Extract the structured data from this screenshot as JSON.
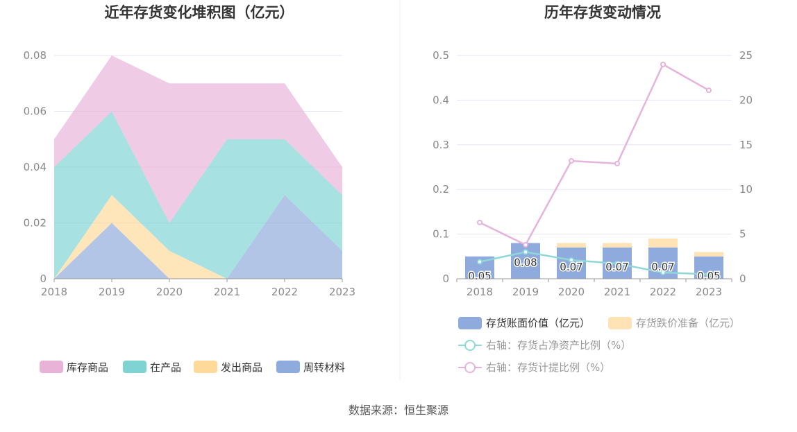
{
  "source": "数据来源：恒生聚源",
  "chart_data": [
    {
      "type": "area",
      "stacked": true,
      "title": "近年存货变化堆积图（亿元）",
      "categories": [
        "2018",
        "2019",
        "2020",
        "2021",
        "2022",
        "2023"
      ],
      "ylim": [
        0,
        0.08
      ],
      "yticks": [
        "0",
        "0.02",
        "0.04",
        "0.06",
        "0.08"
      ],
      "grid": true,
      "legend_position": "bottom",
      "series": [
        {
          "name": "周转材料",
          "color": "#8faadc",
          "values": [
            0,
            0.02,
            0,
            0,
            0.03,
            0.01
          ]
        },
        {
          "name": "发出商品",
          "color": "#ffd99a",
          "values": [
            0,
            0.01,
            0.01,
            0,
            0,
            0
          ]
        },
        {
          "name": "在产品",
          "color": "#7fd3d3",
          "values": [
            0.04,
            0.03,
            0.01,
            0.05,
            0.02,
            0.02
          ]
        },
        {
          "name": "库存商品",
          "color": "#e9b3d8",
          "values": [
            0.01,
            0.02,
            0.05,
            0.02,
            0.02,
            0.01
          ]
        }
      ],
      "legend_order": [
        "库存商品",
        "在产品",
        "发出商品",
        "周转材料"
      ]
    },
    {
      "type": "bar",
      "stacked": true,
      "title": "历年存货变动情况",
      "categories": [
        "2018",
        "2019",
        "2020",
        "2021",
        "2022",
        "2023"
      ],
      "ylim": [
        0,
        0.5
      ],
      "yticks": [
        "0",
        "0.1",
        "0.2",
        "0.3",
        "0.4",
        "0.5"
      ],
      "y2lim": [
        0,
        25
      ],
      "y2ticks": [
        "0",
        "5",
        "10",
        "15",
        "20",
        "25"
      ],
      "grid": true,
      "legend_position": "bottom",
      "bars": [
        {
          "name": "存货账面价值（亿元）",
          "color": "#8faadc",
          "values": [
            0.05,
            0.08,
            0.07,
            0.07,
            0.07,
            0.05
          ],
          "labels": [
            "0.05",
            "0.08",
            "0.07",
            "0.07",
            "0.07",
            "0.05"
          ]
        },
        {
          "name": "存货跌价准备（亿元）",
          "color": "#ffe3b5",
          "values": [
            0,
            0,
            0.01,
            0.01,
            0.02,
            0.01
          ]
        }
      ],
      "lines": [
        {
          "name": "右轴：存货占净资产比例（%）",
          "color": "#8fd8d8",
          "axis": "right",
          "values": [
            1.9,
            3.0,
            2.1,
            1.7,
            0.7,
            0.5
          ]
        },
        {
          "name": "右轴：存货计提比例（%）",
          "color": "#e6b3dc",
          "axis": "right",
          "values": [
            6.3,
            3.8,
            13.2,
            12.9,
            24.0,
            21.1
          ]
        }
      ]
    }
  ]
}
